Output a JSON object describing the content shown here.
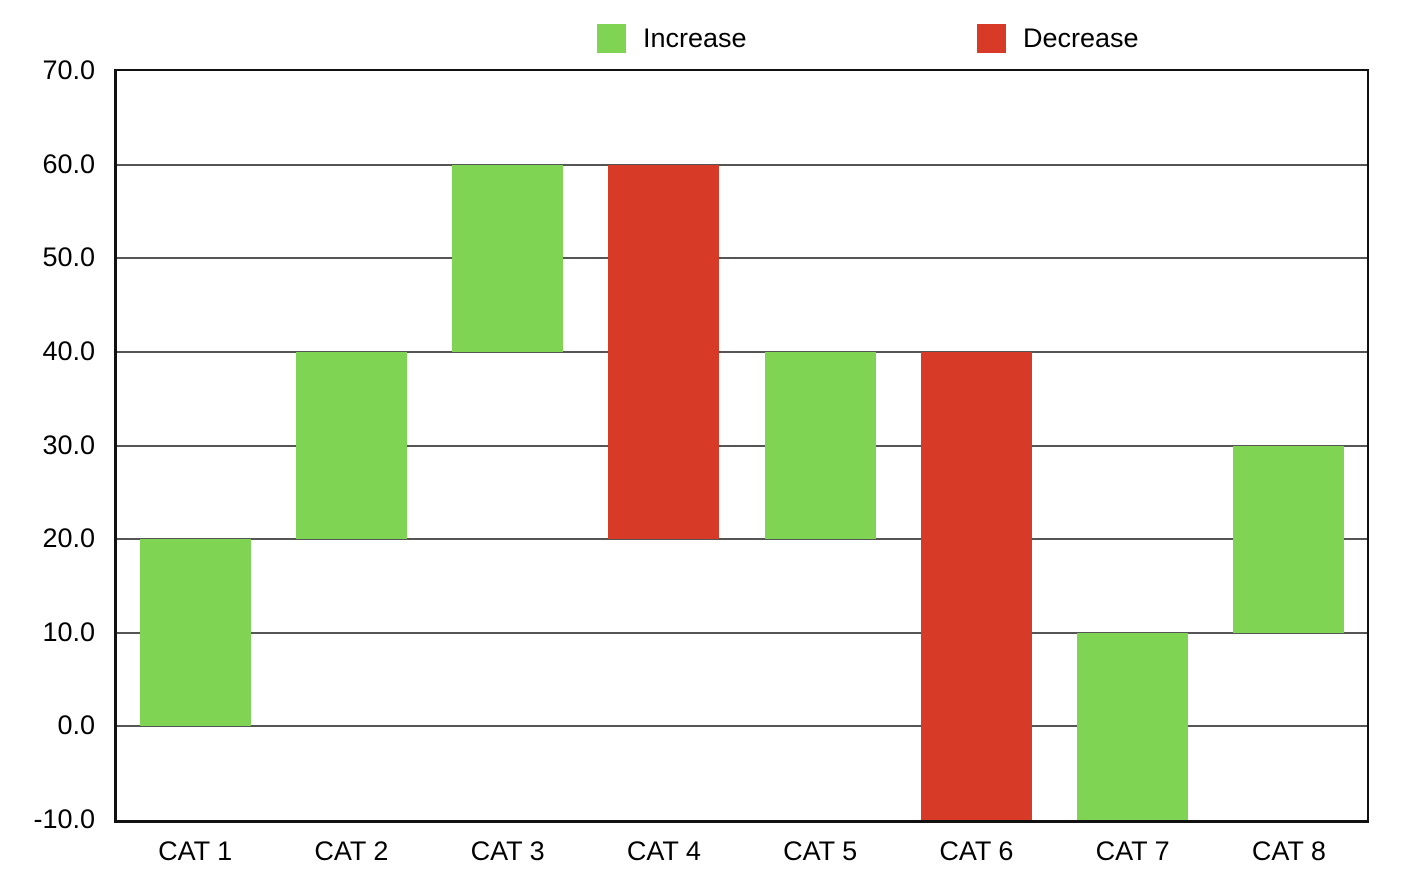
{
  "legend": {
    "items": [
      {
        "label": "Increase",
        "color": "#7FD453"
      },
      {
        "label": "Decrease",
        "color": "#D73A27"
      }
    ]
  },
  "chart_data": {
    "type": "bar",
    "subtype": "waterfall",
    "title": "",
    "xlabel": "",
    "ylabel": "",
    "categories": [
      "CAT 1",
      "CAT 2",
      "CAT 3",
      "CAT 4",
      "CAT 5",
      "CAT 6",
      "CAT 7",
      "CAT 8"
    ],
    "bars": [
      {
        "category": "CAT 1",
        "start": 0,
        "end": 20,
        "delta": 20,
        "kind": "increase"
      },
      {
        "category": "CAT 2",
        "start": 20,
        "end": 40,
        "delta": 20,
        "kind": "increase"
      },
      {
        "category": "CAT 3",
        "start": 40,
        "end": 60,
        "delta": 20,
        "kind": "increase"
      },
      {
        "category": "CAT 4",
        "start": 60,
        "end": 20,
        "delta": -40,
        "kind": "decrease"
      },
      {
        "category": "CAT 5",
        "start": 20,
        "end": 40,
        "delta": 20,
        "kind": "increase"
      },
      {
        "category": "CAT 6",
        "start": 40,
        "end": -10,
        "delta": -50,
        "kind": "decrease"
      },
      {
        "category": "CAT 7",
        "start": -10,
        "end": 10,
        "delta": 20,
        "kind": "increase"
      },
      {
        "category": "CAT 8",
        "start": 10,
        "end": 30,
        "delta": 20,
        "kind": "increase"
      }
    ],
    "ylim": [
      -10,
      70
    ],
    "ytick_step": 10,
    "ytick_labels": [
      "70.0",
      "60.0",
      "50.0",
      "40.0",
      "30.0",
      "20.0",
      "10.0",
      "0.0",
      "-10.0"
    ],
    "grid": true,
    "legend_position": "top",
    "colors": {
      "increase": "#7FD453",
      "decrease": "#D73A27",
      "gridline": "#555555",
      "axis": "#111111",
      "text": "#000000",
      "background": "#ffffff"
    }
  }
}
